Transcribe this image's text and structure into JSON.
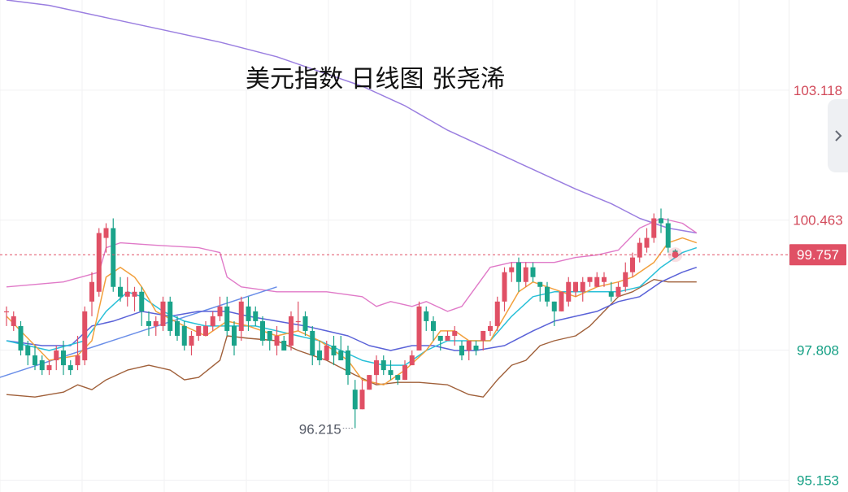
{
  "chart_data": {
    "type": "candlestick",
    "title": "美元指数 日线图 张尧浠",
    "y_ticks": [
      "103.118",
      "100.463",
      "97.808",
      "95.153"
    ],
    "y_tick_values": [
      103.118,
      100.463,
      97.808,
      95.153
    ],
    "ylim": [
      94.91,
      104.96
    ],
    "current_price": {
      "label": "99.757",
      "value": 99.757
    },
    "low_annotation": {
      "label": "96.215",
      "value": 96.215,
      "bar_index": 49
    },
    "grid": true,
    "colors": {
      "up": "#e05065",
      "down": "#1aa38a",
      "ma5": "#f2a03d",
      "ma10": "#29c0d8",
      "ma20": "#5a62d8",
      "ma200": "#9a7ee0",
      "bb_upper": "#e07ac8",
      "lower_band": "#a0603a",
      "trendline": "#6a8ee8",
      "price_line": "#e05065",
      "axis_up_text": "#d24a5a",
      "axis_down_text": "#16a085"
    },
    "candles": [
      [
        98.6,
        98.6,
        98.3,
        98.7
      ],
      [
        98.3,
        98.5,
        98.2,
        98.6
      ],
      [
        98.3,
        97.8,
        97.7,
        98.4
      ],
      [
        97.9,
        97.7,
        97.5,
        98.0
      ],
      [
        97.7,
        97.5,
        97.4,
        97.9
      ],
      [
        97.6,
        97.4,
        97.3,
        97.7
      ],
      [
        97.4,
        97.5,
        97.3,
        97.6
      ],
      [
        97.6,
        97.8,
        97.4,
        97.9
      ],
      [
        97.8,
        97.5,
        97.3,
        98.0
      ],
      [
        97.5,
        97.4,
        97.3,
        97.6
      ],
      [
        97.5,
        97.7,
        97.4,
        98.1
      ],
      [
        97.6,
        98.6,
        97.5,
        98.7
      ],
      [
        98.8,
        99.2,
        98.5,
        99.4
      ],
      [
        99.0,
        100.2,
        98.9,
        100.3
      ],
      [
        100.1,
        100.3,
        99.8,
        100.4
      ],
      [
        100.3,
        99.1,
        99.0,
        100.5
      ],
      [
        99.1,
        98.9,
        98.8,
        99.3
      ],
      [
        98.9,
        99.0,
        98.7,
        99.3
      ],
      [
        98.9,
        99.0,
        98.6,
        99.1
      ],
      [
        99.0,
        98.6,
        98.3,
        99.1
      ],
      [
        98.4,
        98.3,
        98.1,
        98.6
      ],
      [
        98.3,
        98.4,
        98.1,
        98.5
      ],
      [
        98.3,
        98.8,
        98.2,
        98.9
      ],
      [
        98.8,
        98.2,
        98.1,
        98.9
      ],
      [
        98.4,
        98.1,
        98.0,
        98.5
      ],
      [
        98.3,
        97.9,
        97.8,
        98.4
      ],
      [
        97.9,
        98.1,
        97.7,
        98.2
      ],
      [
        98.1,
        98.3,
        98.0,
        98.3
      ],
      [
        98.1,
        98.3,
        98.1,
        98.4
      ],
      [
        98.3,
        98.5,
        98.2,
        98.6
      ],
      [
        98.5,
        98.7,
        98.4,
        98.9
      ],
      [
        98.7,
        98.2,
        98.1,
        98.9
      ],
      [
        98.3,
        97.9,
        97.7,
        98.4
      ],
      [
        98.2,
        98.8,
        98.0,
        98.9
      ],
      [
        98.7,
        98.4,
        98.2,
        98.9
      ],
      [
        98.6,
        98.4,
        98.3,
        98.7
      ],
      [
        98.4,
        98.0,
        97.9,
        98.5
      ],
      [
        98.2,
        98.0,
        97.8,
        98.2
      ],
      [
        97.9,
        98.1,
        97.7,
        98.3
      ],
      [
        98.0,
        97.8,
        97.8,
        98.1
      ],
      [
        97.9,
        98.5,
        97.8,
        98.6
      ],
      [
        98.4,
        98.4,
        98.2,
        98.8
      ],
      [
        98.5,
        98.2,
        98.1,
        98.6
      ],
      [
        98.2,
        97.7,
        97.5,
        98.3
      ],
      [
        97.8,
        97.6,
        97.5,
        98.0
      ],
      [
        97.6,
        97.9,
        97.6,
        98.0
      ],
      [
        97.9,
        97.7,
        97.5,
        98.1
      ],
      [
        97.8,
        97.6,
        97.6,
        98.1
      ],
      [
        97.8,
        97.3,
        97.1,
        97.9
      ],
      [
        97.0,
        96.6,
        96.215,
        97.2
      ],
      [
        96.6,
        97.0,
        96.6,
        97.2
      ],
      [
        97.0,
        97.3,
        97.0,
        97.3
      ],
      [
        97.3,
        97.6,
        97.1,
        97.7
      ],
      [
        97.6,
        97.4,
        97.3,
        97.7
      ],
      [
        97.4,
        97.3,
        97.2,
        97.6
      ],
      [
        97.3,
        97.2,
        97.1,
        97.3
      ],
      [
        97.2,
        97.5,
        97.2,
        97.6
      ],
      [
        97.5,
        97.7,
        97.5,
        97.8
      ],
      [
        97.8,
        98.7,
        97.8,
        98.8
      ],
      [
        98.6,
        98.4,
        98.2,
        98.7
      ],
      [
        98.4,
        98.2,
        98.0,
        98.5
      ],
      [
        98.1,
        98.0,
        97.8,
        98.1
      ],
      [
        98.0,
        98.1,
        98.0,
        98.2
      ],
      [
        98.1,
        98.2,
        97.9,
        98.3
      ],
      [
        97.9,
        97.7,
        97.6,
        98.0
      ],
      [
        97.8,
        98.0,
        97.6,
        98.0
      ],
      [
        97.9,
        97.8,
        97.7,
        98.0
      ],
      [
        98.0,
        98.2,
        97.8,
        98.2
      ],
      [
        98.2,
        98.3,
        98.1,
        98.4
      ],
      [
        98.3,
        98.8,
        98.2,
        98.9
      ],
      [
        98.8,
        99.4,
        98.6,
        99.5
      ],
      [
        99.4,
        99.5,
        99.2,
        99.6
      ],
      [
        99.6,
        99.2,
        99.0,
        99.7
      ],
      [
        99.2,
        99.5,
        99.1,
        99.6
      ],
      [
        99.5,
        99.3,
        99.2,
        99.6
      ],
      [
        99.2,
        99.1,
        98.8,
        99.2
      ],
      [
        99.1,
        98.8,
        98.7,
        99.2
      ],
      [
        98.8,
        98.6,
        98.3,
        98.8
      ],
      [
        98.6,
        99.0,
        98.6,
        99.0
      ],
      [
        98.8,
        99.2,
        98.7,
        99.3
      ],
      [
        99.0,
        99.2,
        98.9,
        99.2
      ],
      [
        99.0,
        99.2,
        98.8,
        99.3
      ],
      [
        99.2,
        99.3,
        99.1,
        99.3
      ],
      [
        99.1,
        99.3,
        99.1,
        99.4
      ],
      [
        99.2,
        99.3,
        99.1,
        99.4
      ],
      [
        99.0,
        98.9,
        98.8,
        99.2
      ],
      [
        98.9,
        99.1,
        98.9,
        99.2
      ],
      [
        99.1,
        99.4,
        99.0,
        99.6
      ],
      [
        99.4,
        99.7,
        99.3,
        99.8
      ],
      [
        99.7,
        100.0,
        99.6,
        100.1
      ],
      [
        99.9,
        100.1,
        99.8,
        100.3
      ],
      [
        100.1,
        100.5,
        100.0,
        100.6
      ],
      [
        100.5,
        100.4,
        100.2,
        100.7
      ],
      [
        100.4,
        99.9,
        99.8,
        100.5
      ],
      [
        99.84,
        99.757,
        99.74,
        99.87
      ]
    ],
    "ma5": [
      [
        0,
        98.5
      ],
      [
        6,
        97.6
      ],
      [
        10,
        97.7
      ],
      [
        12,
        98.0
      ],
      [
        14,
        99.3
      ],
      [
        16,
        99.5
      ],
      [
        18,
        99.3
      ],
      [
        19,
        99.1
      ],
      [
        21,
        98.6
      ],
      [
        25,
        98.3
      ],
      [
        28,
        98.1
      ],
      [
        31,
        98.4
      ],
      [
        34,
        98.3
      ],
      [
        38,
        98.1
      ],
      [
        41,
        98.2
      ],
      [
        44,
        98.0
      ],
      [
        46,
        97.8
      ],
      [
        48,
        97.6
      ],
      [
        50,
        97.2
      ],
      [
        53,
        97.1
      ],
      [
        56,
        97.4
      ],
      [
        59,
        97.8
      ],
      [
        61,
        98.2
      ],
      [
        63,
        98.2
      ],
      [
        65,
        98.0
      ],
      [
        68,
        98.0
      ],
      [
        70,
        98.5
      ],
      [
        72,
        99.0
      ],
      [
        74,
        99.2
      ],
      [
        78,
        99.0
      ],
      [
        80,
        98.9
      ],
      [
        83,
        99.1
      ],
      [
        86,
        99.2
      ],
      [
        88,
        99.3
      ],
      [
        91,
        99.6
      ],
      [
        93,
        100.0
      ],
      [
        95,
        100.1
      ],
      [
        97,
        100.0
      ]
    ],
    "ma10": [
      [
        0,
        98.0
      ],
      [
        6,
        97.8
      ],
      [
        11,
        98.0
      ],
      [
        14,
        98.6
      ],
      [
        17,
        99.0
      ],
      [
        19,
        98.9
      ],
      [
        22,
        98.6
      ],
      [
        25,
        98.4
      ],
      [
        28,
        98.3
      ],
      [
        31,
        98.3
      ],
      [
        35,
        98.3
      ],
      [
        38,
        98.2
      ],
      [
        41,
        98.1
      ],
      [
        44,
        98.0
      ],
      [
        47,
        97.8
      ],
      [
        50,
        97.6
      ],
      [
        53,
        97.5
      ],
      [
        56,
        97.5
      ],
      [
        59,
        97.8
      ],
      [
        62,
        98.0
      ],
      [
        65,
        98.0
      ],
      [
        68,
        98.0
      ],
      [
        71,
        98.5
      ],
      [
        74,
        98.9
      ],
      [
        77,
        99.0
      ],
      [
        80,
        99.0
      ],
      [
        83,
        99.0
      ],
      [
        86,
        99.0
      ],
      [
        89,
        99.1
      ],
      [
        92,
        99.5
      ],
      [
        95,
        99.8
      ],
      [
        97,
        99.9
      ]
    ],
    "ma20": [
      [
        0,
        98.0
      ],
      [
        5,
        97.9
      ],
      [
        9,
        97.9
      ],
      [
        12,
        98.3
      ],
      [
        15,
        98.4
      ],
      [
        19,
        98.6
      ],
      [
        23,
        98.5
      ],
      [
        27,
        98.6
      ],
      [
        31,
        98.6
      ],
      [
        34,
        98.5
      ],
      [
        38,
        98.4
      ],
      [
        42,
        98.3
      ],
      [
        45,
        98.2
      ],
      [
        48,
        98.1
      ],
      [
        51,
        97.9
      ],
      [
        54,
        97.8
      ],
      [
        57,
        97.9
      ],
      [
        60,
        97.9
      ],
      [
        63,
        97.8
      ],
      [
        66,
        97.8
      ],
      [
        70,
        97.9
      ],
      [
        74,
        98.2
      ],
      [
        77,
        98.4
      ],
      [
        80,
        98.5
      ],
      [
        83,
        98.6
      ],
      [
        86,
        98.8
      ],
      [
        89,
        98.9
      ],
      [
        92,
        99.2
      ],
      [
        95,
        99.4
      ],
      [
        97,
        99.5
      ]
    ],
    "ma200": [
      [
        0,
        104.96
      ],
      [
        6,
        104.85
      ],
      [
        14,
        104.6
      ],
      [
        22,
        104.35
      ],
      [
        30,
        104.1
      ],
      [
        38,
        103.8
      ],
      [
        44,
        103.5
      ],
      [
        50,
        103.2
      ],
      [
        56,
        102.8
      ],
      [
        62,
        102.3
      ],
      [
        68,
        101.9
      ],
      [
        74,
        101.5
      ],
      [
        80,
        101.1
      ],
      [
        85,
        100.8
      ],
      [
        89,
        100.5
      ],
      [
        93,
        100.3
      ],
      [
        97,
        100.2
      ]
    ],
    "bb_upper": [
      [
        0,
        99.1
      ],
      [
        8,
        99.2
      ],
      [
        13,
        99.4
      ],
      [
        14,
        99.9
      ],
      [
        16,
        100.0
      ],
      [
        21,
        99.95
      ],
      [
        27,
        99.9
      ],
      [
        30,
        99.8
      ],
      [
        31,
        99.3
      ],
      [
        33,
        99.1
      ],
      [
        38,
        99.0
      ],
      [
        45,
        99.0
      ],
      [
        50,
        98.9
      ],
      [
        52,
        98.7
      ],
      [
        54,
        98.8
      ],
      [
        57,
        98.7
      ],
      [
        59,
        98.8
      ],
      [
        62,
        98.6
      ],
      [
        64,
        98.7
      ],
      [
        68,
        99.5
      ],
      [
        71,
        99.6
      ],
      [
        74,
        99.6
      ],
      [
        77,
        99.6
      ],
      [
        80,
        99.7
      ],
      [
        83,
        99.75
      ],
      [
        86,
        99.85
      ],
      [
        89,
        100.3
      ],
      [
        92,
        100.5
      ],
      [
        95,
        100.4
      ],
      [
        97,
        100.2
      ]
    ],
    "lower_band": [
      [
        0,
        96.9
      ],
      [
        4,
        96.85
      ],
      [
        8,
        96.95
      ],
      [
        10,
        97.1
      ],
      [
        12,
        97.0
      ],
      [
        14,
        97.2
      ],
      [
        17,
        97.4
      ],
      [
        20,
        97.5
      ],
      [
        23,
        97.4
      ],
      [
        25,
        97.2
      ],
      [
        27,
        97.25
      ],
      [
        30,
        97.6
      ],
      [
        31,
        98.1
      ],
      [
        34,
        98.05
      ],
      [
        38,
        98.0
      ],
      [
        41,
        97.8
      ],
      [
        45,
        97.6
      ],
      [
        49,
        97.3
      ],
      [
        52,
        97.1
      ],
      [
        55,
        97.15
      ],
      [
        58,
        97.15
      ],
      [
        62,
        97.1
      ],
      [
        65,
        96.9
      ],
      [
        67,
        96.85
      ],
      [
        69,
        97.2
      ],
      [
        71,
        97.5
      ],
      [
        73,
        97.6
      ],
      [
        75,
        97.9
      ],
      [
        77,
        98.0
      ],
      [
        80,
        98.1
      ],
      [
        82,
        98.3
      ],
      [
        84,
        98.6
      ],
      [
        86,
        98.9
      ],
      [
        88,
        99.0
      ],
      [
        91,
        99.25
      ],
      [
        93,
        99.2
      ],
      [
        95,
        99.2
      ],
      [
        97,
        99.2
      ]
    ],
    "trendline": [
      [
        -2,
        97.2
      ],
      [
        38,
        99.1
      ]
    ]
  }
}
